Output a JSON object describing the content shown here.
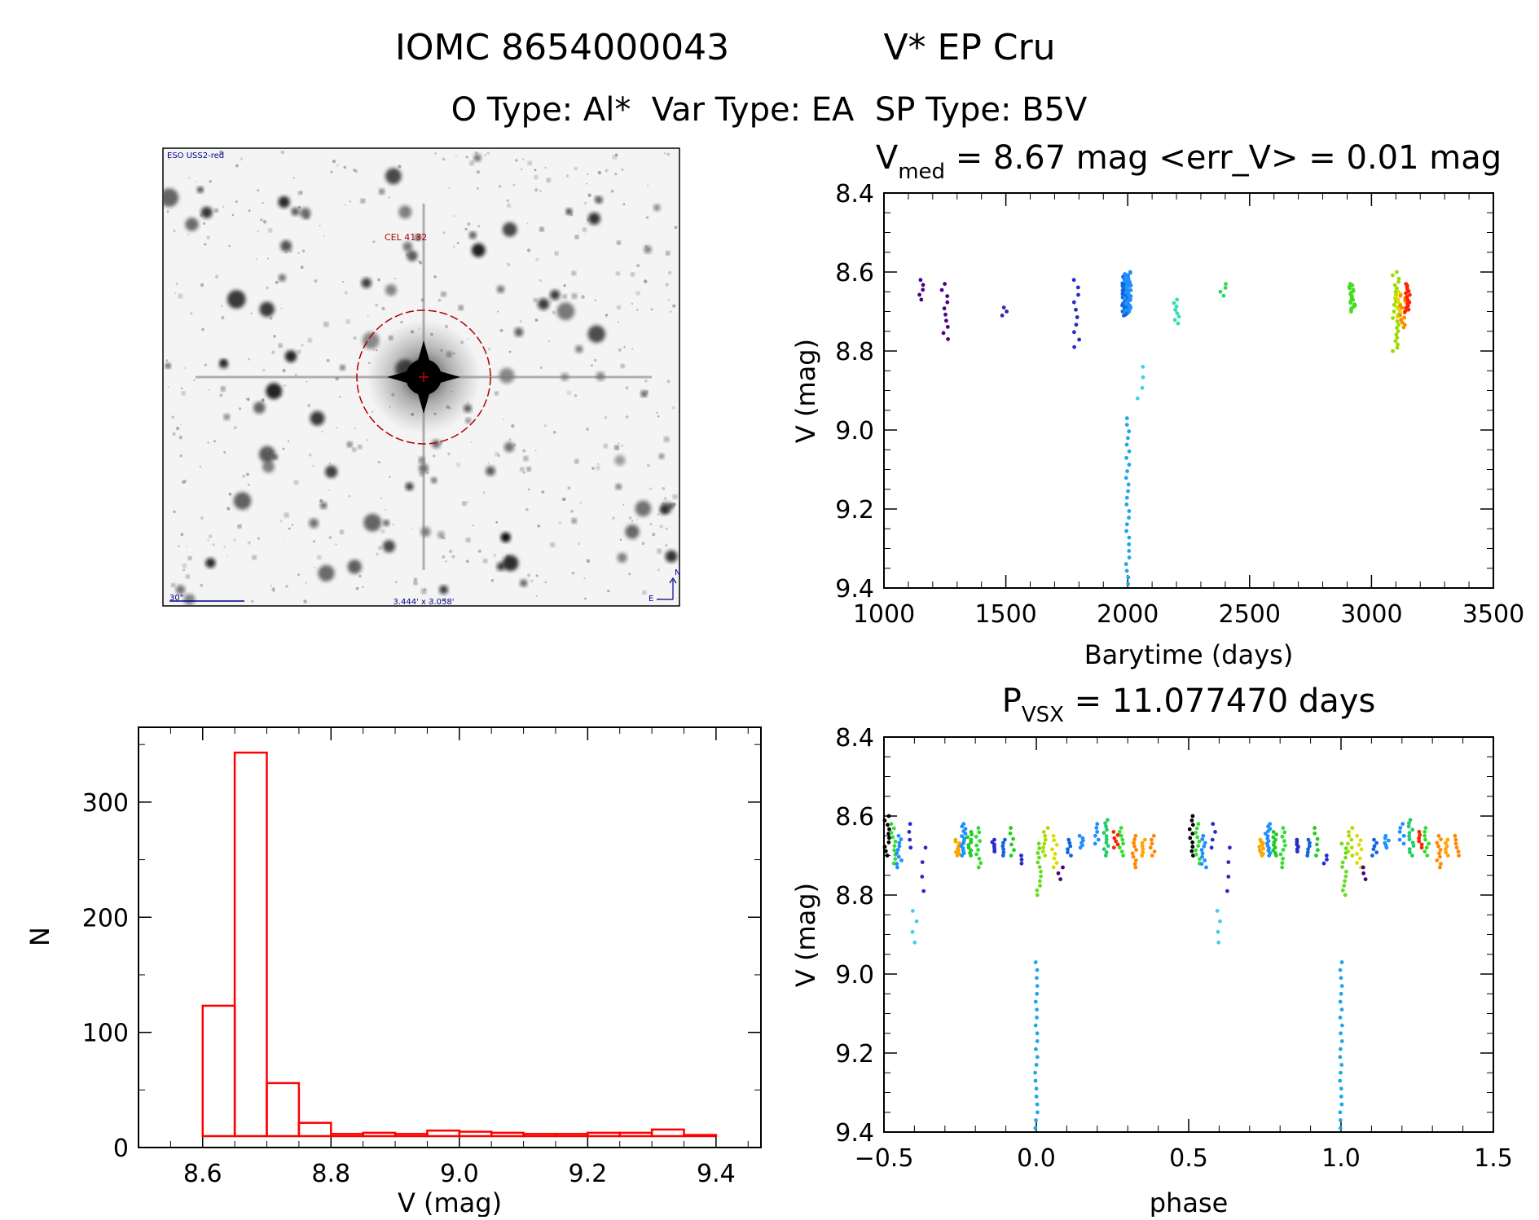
{
  "header": {
    "title_id": "IOMC 8654000043",
    "title_name": "V* EP Cru",
    "types": "O Type: Al*  Var Type: EA  SP Type: B5V"
  },
  "finder": {
    "survey_label": "ESO USS2-red",
    "star_label": "CEL 4132",
    "scale_label": "30\"",
    "fov_label": "3.444' x 3.058'",
    "north_label": "N",
    "east_label": "E"
  },
  "lightcurve": {
    "title_main": "V",
    "title_sub": "med",
    "title_rest": " = 8.67 mag <err_V> = 0.01 mag",
    "xlabel": "Barytime (days)",
    "ylabel": "V (mag)",
    "xticks": [
      "1000",
      "1500",
      "2000",
      "2500",
      "3000",
      "3500"
    ],
    "yticks": [
      "8.4",
      "8.6",
      "8.8",
      "9.0",
      "9.2",
      "9.4"
    ]
  },
  "phased": {
    "title_main": "P",
    "title_sub": "VSX",
    "title_rest": " = 11.077470 days",
    "xlabel": "phase",
    "ylabel": "V (mag)",
    "xticks": [
      "−0.5",
      "0.0",
      "0.5",
      "1.0",
      "1.5"
    ],
    "yticks": [
      "8.4",
      "8.6",
      "8.8",
      "9.0",
      "9.2",
      "9.4"
    ]
  },
  "histogram": {
    "xlabel": "V (mag)",
    "ylabel": "N",
    "xticks": [
      "8.6",
      "8.8",
      "9.0",
      "9.2",
      "9.4"
    ],
    "yticks": [
      "0",
      "100",
      "200",
      "300"
    ]
  },
  "chart_data": [
    {
      "type": "scatter",
      "name": "light curve",
      "title": "Vmed = 8.67 mag <err_V> = 0.01 mag",
      "xlabel": "Barytime (days)",
      "ylabel": "V (mag)",
      "xlim": [
        1000,
        3500
      ],
      "ylim": [
        8.4,
        9.4
      ],
      "y_inverted": true,
      "clusters": [
        {
          "x": 1150,
          "ymin": 8.62,
          "ymax": 8.67,
          "n": 5,
          "color": "#4b0082"
        },
        {
          "x": 1250,
          "ymin": 8.63,
          "ymax": 8.77,
          "n": 10,
          "color": "#4b0082"
        },
        {
          "x": 1495,
          "ymin": 8.69,
          "ymax": 8.71,
          "n": 3,
          "color": "#4422aa"
        },
        {
          "x": 1790,
          "ymin": 8.62,
          "ymax": 8.79,
          "n": 10,
          "color": "#2a2ac8"
        },
        {
          "x": 1990,
          "ymin": 8.61,
          "ymax": 8.71,
          "n": 60,
          "color": "#1166dd"
        },
        {
          "x": 2000,
          "ymin": 8.6,
          "ymax": 8.7,
          "n": 40,
          "color": "#1e90ff"
        },
        {
          "x": 2050,
          "ymin": 8.84,
          "ymax": 8.92,
          "n": 4,
          "color": "#40d0e8"
        },
        {
          "x": 2200,
          "ymin": 8.67,
          "ymax": 8.73,
          "n": 8,
          "color": "#30e0b0"
        },
        {
          "x": 2390,
          "ymin": 8.63,
          "ymax": 8.66,
          "n": 4,
          "color": "#22dd55"
        },
        {
          "x": 2920,
          "ymin": 8.63,
          "ymax": 8.7,
          "n": 20,
          "color": "#44dd22"
        },
        {
          "x": 3100,
          "ymin": 8.6,
          "ymax": 8.8,
          "n": 25,
          "color": "#99dd00"
        },
        {
          "x": 3110,
          "ymin": 8.65,
          "ymax": 8.72,
          "n": 12,
          "color": "#dddd00"
        },
        {
          "x": 3130,
          "ymin": 8.66,
          "ymax": 8.74,
          "n": 14,
          "color": "#ff8800"
        },
        {
          "x": 3150,
          "ymin": 8.63,
          "ymax": 8.7,
          "n": 16,
          "color": "#ff2200"
        }
      ],
      "eclipse": {
        "x": 2000,
        "ymin": 8.97,
        "ymax": 9.39,
        "n": 26,
        "color": "#1ea8e8"
      }
    },
    {
      "type": "scatter",
      "name": "phased light curve",
      "title": "Pvsx = 11.077470 days",
      "xlabel": "phase",
      "ylabel": "V (mag)",
      "xlim": [
        -0.5,
        1.5
      ],
      "ylim": [
        8.4,
        9.4
      ],
      "y_inverted": true,
      "period_days": 11.07747,
      "clusters": [
        {
          "x": -0.49,
          "ymin": 8.6,
          "ymax": 8.7,
          "n": 10,
          "color": "#000000"
        },
        {
          "x": -0.47,
          "ymin": 8.62,
          "ymax": 8.72,
          "n": 10,
          "color": "#33dd33"
        },
        {
          "x": -0.45,
          "ymin": 8.65,
          "ymax": 8.73,
          "n": 10,
          "color": "#1e90ff"
        },
        {
          "x": -0.42,
          "ymin": 8.62,
          "ymax": 8.68,
          "n": 4,
          "color": "#2a2ac8"
        },
        {
          "x": -0.4,
          "ymin": 8.84,
          "ymax": 8.92,
          "n": 4,
          "color": "#40d0e8"
        },
        {
          "x": -0.37,
          "ymin": 8.68,
          "ymax": 8.79,
          "n": 4,
          "color": "#2a2ac8"
        },
        {
          "x": -0.26,
          "ymin": 8.66,
          "ymax": 8.7,
          "n": 10,
          "color": "#ffa500"
        },
        {
          "x": -0.24,
          "ymin": 8.62,
          "ymax": 8.7,
          "n": 14,
          "color": "#1e90ff"
        },
        {
          "x": -0.22,
          "ymin": 8.64,
          "ymax": 8.7,
          "n": 10,
          "color": "#22cc22"
        },
        {
          "x": -0.19,
          "ymin": 8.63,
          "ymax": 8.73,
          "n": 10,
          "color": "#33dd33"
        },
        {
          "x": -0.14,
          "ymin": 8.66,
          "ymax": 8.69,
          "n": 6,
          "color": "#2a2ac8"
        },
        {
          "x": -0.11,
          "ymin": 8.66,
          "ymax": 8.7,
          "n": 6,
          "color": "#1166dd"
        },
        {
          "x": -0.08,
          "ymin": 8.63,
          "ymax": 8.7,
          "n": 6,
          "color": "#22cc22"
        },
        {
          "x": -0.05,
          "ymin": 8.7,
          "ymax": 8.72,
          "n": 3,
          "color": "#2a2ac8"
        },
        {
          "x": 0.01,
          "ymin": 8.67,
          "ymax": 8.8,
          "n": 12,
          "color": "#66dd22"
        },
        {
          "x": 0.03,
          "ymin": 8.63,
          "ymax": 8.7,
          "n": 8,
          "color": "#aadd00"
        },
        {
          "x": 0.06,
          "ymin": 8.65,
          "ymax": 8.73,
          "n": 8,
          "color": "#dddd00"
        },
        {
          "x": 0.08,
          "ymin": 8.73,
          "ymax": 8.76,
          "n": 3,
          "color": "#4b0082"
        },
        {
          "x": 0.11,
          "ymin": 8.66,
          "ymax": 8.7,
          "n": 6,
          "color": "#1166dd"
        },
        {
          "x": 0.15,
          "ymin": 8.65,
          "ymax": 8.68,
          "n": 6,
          "color": "#1e90ff"
        },
        {
          "x": 0.2,
          "ymin": 8.62,
          "ymax": 8.67,
          "n": 6,
          "color": "#1e90ff"
        },
        {
          "x": 0.23,
          "ymin": 8.61,
          "ymax": 8.7,
          "n": 12,
          "color": "#22cc66"
        },
        {
          "x": 0.26,
          "ymin": 8.64,
          "ymax": 8.68,
          "n": 6,
          "color": "#ff2200"
        },
        {
          "x": 0.28,
          "ymin": 8.63,
          "ymax": 8.7,
          "n": 8,
          "color": "#33dd33"
        },
        {
          "x": 0.32,
          "ymin": 8.65,
          "ymax": 8.73,
          "n": 10,
          "color": "#ff8800"
        },
        {
          "x": 0.35,
          "ymin": 8.66,
          "ymax": 8.7,
          "n": 6,
          "color": "#ffa500"
        },
        {
          "x": 0.38,
          "ymin": 8.65,
          "ymax": 8.7,
          "n": 6,
          "color": "#ff8800"
        },
        {
          "x": 0.51,
          "ymin": 8.6,
          "ymax": 8.7,
          "n": 10,
          "color": "#000000"
        },
        {
          "x": 0.53,
          "ymin": 8.62,
          "ymax": 8.72,
          "n": 10,
          "color": "#33dd33"
        },
        {
          "x": 0.55,
          "ymin": 8.65,
          "ymax": 8.73,
          "n": 10,
          "color": "#1e90ff"
        },
        {
          "x": 0.58,
          "ymin": 8.62,
          "ymax": 8.68,
          "n": 4,
          "color": "#2a2ac8"
        },
        {
          "x": 0.6,
          "ymin": 8.84,
          "ymax": 8.92,
          "n": 4,
          "color": "#40d0e8"
        },
        {
          "x": 0.63,
          "ymin": 8.68,
          "ymax": 8.79,
          "n": 4,
          "color": "#2a2ac8"
        },
        {
          "x": 0.74,
          "ymin": 8.66,
          "ymax": 8.7,
          "n": 10,
          "color": "#ffa500"
        },
        {
          "x": 0.76,
          "ymin": 8.62,
          "ymax": 8.7,
          "n": 14,
          "color": "#1e90ff"
        },
        {
          "x": 0.78,
          "ymin": 8.64,
          "ymax": 8.7,
          "n": 10,
          "color": "#22cc22"
        },
        {
          "x": 0.81,
          "ymin": 8.63,
          "ymax": 8.73,
          "n": 10,
          "color": "#33dd33"
        },
        {
          "x": 0.86,
          "ymin": 8.66,
          "ymax": 8.69,
          "n": 6,
          "color": "#2a2ac8"
        },
        {
          "x": 0.89,
          "ymin": 8.66,
          "ymax": 8.7,
          "n": 6,
          "color": "#1166dd"
        },
        {
          "x": 0.92,
          "ymin": 8.63,
          "ymax": 8.7,
          "n": 6,
          "color": "#22cc22"
        },
        {
          "x": 0.95,
          "ymin": 8.7,
          "ymax": 8.72,
          "n": 3,
          "color": "#2a2ac8"
        },
        {
          "x": 1.01,
          "ymin": 8.67,
          "ymax": 8.8,
          "n": 12,
          "color": "#66dd22"
        },
        {
          "x": 1.03,
          "ymin": 8.63,
          "ymax": 8.7,
          "n": 8,
          "color": "#aadd00"
        },
        {
          "x": 1.06,
          "ymin": 8.65,
          "ymax": 8.73,
          "n": 8,
          "color": "#dddd00"
        },
        {
          "x": 1.08,
          "ymin": 8.73,
          "ymax": 8.76,
          "n": 3,
          "color": "#4b0082"
        },
        {
          "x": 1.11,
          "ymin": 8.66,
          "ymax": 8.7,
          "n": 6,
          "color": "#1166dd"
        },
        {
          "x": 1.15,
          "ymin": 8.65,
          "ymax": 8.68,
          "n": 6,
          "color": "#1e90ff"
        },
        {
          "x": 1.2,
          "ymin": 8.62,
          "ymax": 8.67,
          "n": 6,
          "color": "#1e90ff"
        },
        {
          "x": 1.23,
          "ymin": 8.61,
          "ymax": 8.7,
          "n": 12,
          "color": "#22cc66"
        },
        {
          "x": 1.26,
          "ymin": 8.64,
          "ymax": 8.68,
          "n": 6,
          "color": "#ff2200"
        },
        {
          "x": 1.28,
          "ymin": 8.63,
          "ymax": 8.7,
          "n": 8,
          "color": "#33dd33"
        },
        {
          "x": 1.32,
          "ymin": 8.65,
          "ymax": 8.73,
          "n": 10,
          "color": "#ff8800"
        },
        {
          "x": 1.35,
          "ymin": 8.66,
          "ymax": 8.7,
          "n": 6,
          "color": "#ffa500"
        },
        {
          "x": 1.38,
          "ymin": 8.65,
          "ymax": 8.7,
          "n": 6,
          "color": "#ff8800"
        }
      ],
      "eclipses": [
        {
          "x": 0.0,
          "ymin": 8.97,
          "ymax": 9.39,
          "n": 22,
          "color": "#1ea8e8"
        },
        {
          "x": 1.0,
          "ymin": 8.97,
          "ymax": 9.39,
          "n": 22,
          "color": "#1ea8e8"
        }
      ]
    },
    {
      "type": "bar",
      "name": "magnitude histogram",
      "title": "",
      "xlabel": "V (mag)",
      "ylabel": "N",
      "xlim": [
        8.5,
        9.47
      ],
      "ylim": [
        0,
        350
      ],
      "bar_color": "#ff0000",
      "bin_edges": [
        8.6,
        8.65,
        8.7,
        8.75,
        8.8,
        8.85,
        8.9,
        8.95,
        9.0,
        9.05,
        9.1,
        9.15,
        9.2,
        9.25,
        9.3,
        9.35,
        9.4
      ],
      "counts": [
        118,
        347,
        48,
        12,
        2,
        3,
        2,
        5,
        4,
        3,
        2,
        2,
        3,
        3,
        6,
        1
      ]
    }
  ]
}
